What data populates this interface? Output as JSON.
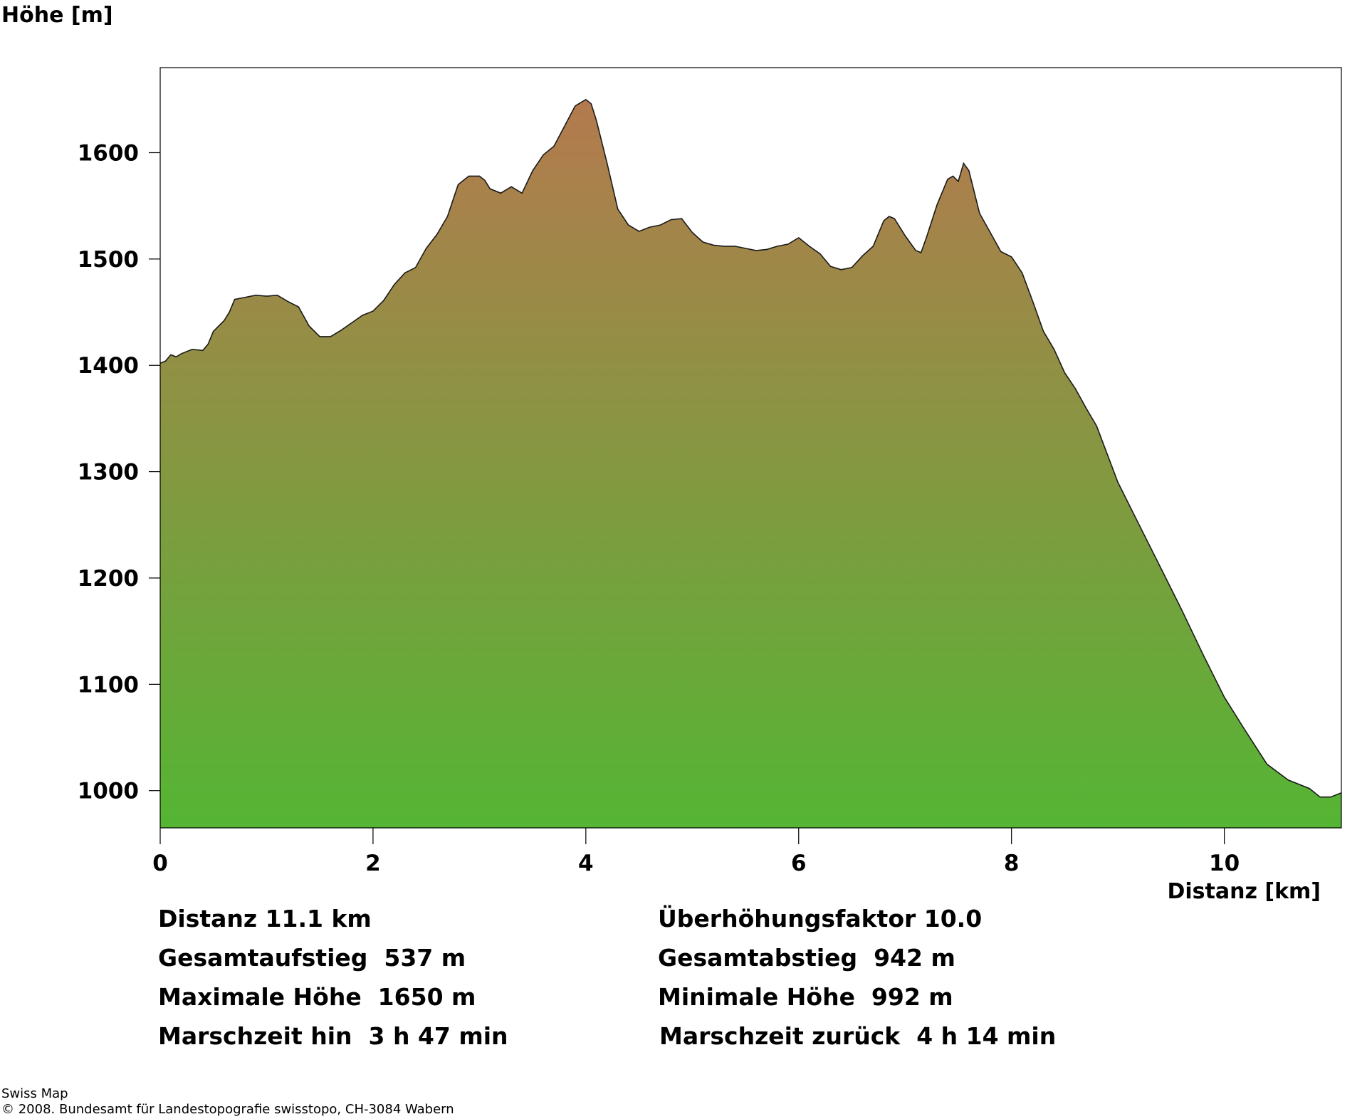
{
  "chart_data": {
    "type": "area",
    "ylabel": "Höhe [m]",
    "xlabel": "Distanz [km]",
    "xlim": [
      0,
      11.1
    ],
    "ylim": [
      965,
      1680
    ],
    "x_ticks": [
      0,
      2,
      4,
      6,
      8,
      10
    ],
    "y_ticks": [
      1000,
      1100,
      1200,
      1300,
      1400,
      1500,
      1600
    ],
    "fill_gradient": {
      "top": "#b47a4e",
      "bottom": "#55b534"
    },
    "series": [
      {
        "x": [
          0,
          0.05,
          0.1,
          0.15,
          0.2,
          0.3,
          0.4,
          0.45,
          0.5,
          0.6,
          0.65,
          0.7,
          0.8,
          0.9,
          1.0,
          1.1,
          1.2,
          1.3,
          1.4,
          1.5,
          1.6,
          1.7,
          1.8,
          1.9,
          2.0,
          2.1,
          2.2,
          2.3,
          2.4,
          2.5,
          2.6,
          2.7,
          2.8,
          2.9,
          3.0,
          3.05,
          3.1,
          3.2,
          3.3,
          3.4,
          3.5,
          3.6,
          3.7,
          3.8,
          3.9,
          4.0,
          4.05,
          4.1,
          4.2,
          4.3,
          4.4,
          4.5,
          4.6,
          4.7,
          4.8,
          4.9,
          5.0,
          5.1,
          5.2,
          5.3,
          5.4,
          5.5,
          5.6,
          5.7,
          5.8,
          5.9,
          6.0,
          6.1,
          6.2,
          6.3,
          6.4,
          6.5,
          6.6,
          6.7,
          6.8,
          6.85,
          6.9,
          7.0,
          7.1,
          7.15,
          7.2,
          7.3,
          7.4,
          7.45,
          7.5,
          7.55,
          7.6,
          7.7,
          7.8,
          7.9,
          8.0,
          8.1,
          8.2,
          8.3,
          8.4,
          8.5,
          8.6,
          8.7,
          8.8,
          9.0,
          9.2,
          9.4,
          9.6,
          9.8,
          10.0,
          10.2,
          10.4,
          10.6,
          10.8,
          10.9,
          11.0,
          11.1
        ],
        "y": [
          1402,
          1404,
          1410,
          1408,
          1411,
          1415,
          1414,
          1420,
          1432,
          1442,
          1450,
          1462,
          1464,
          1466,
          1465,
          1466,
          1460,
          1455,
          1437,
          1427,
          1427,
          1433,
          1440,
          1447,
          1451,
          1461,
          1476,
          1487,
          1492,
          1510,
          1523,
          1540,
          1570,
          1578,
          1578,
          1574,
          1566,
          1562,
          1568,
          1562,
          1583,
          1598,
          1606,
          1625,
          1644,
          1650,
          1646,
          1630,
          1590,
          1547,
          1532,
          1526,
          1530,
          1532,
          1537,
          1538,
          1525,
          1516,
          1513,
          1512,
          1512,
          1510,
          1508,
          1509,
          1512,
          1514,
          1520,
          1512,
          1505,
          1493,
          1490,
          1492,
          1503,
          1512,
          1536,
          1540,
          1538,
          1522,
          1508,
          1506,
          1520,
          1551,
          1575,
          1578,
          1573,
          1590,
          1583,
          1543,
          1525,
          1507,
          1502,
          1487,
          1460,
          1432,
          1415,
          1393,
          1378,
          1360,
          1343,
          1290,
          1250,
          1210,
          1170,
          1128,
          1088,
          1056,
          1025,
          1010,
          1002,
          994,
          994,
          998
        ]
      }
    ]
  },
  "stats": {
    "distance": "Distanz 11.1 km",
    "exaggeration": "Überhöhungsfaktor 10.0",
    "ascent": "Gesamtaufstieg  537 m",
    "descent": "Gesamtabstieg  942 m",
    "max_height": "Maximale Höhe  1650 m",
    "min_height": "Minimale Höhe  992 m",
    "time_there": "Marschzeit hin  3 h 47 min",
    "time_back": "Marschzeit zurück  4 h 14 min"
  },
  "credits": {
    "line1": "Swiss Map",
    "line2": "© 2008. Bundesamt für Landestopografie swisstopo, CH-3084 Wabern"
  }
}
